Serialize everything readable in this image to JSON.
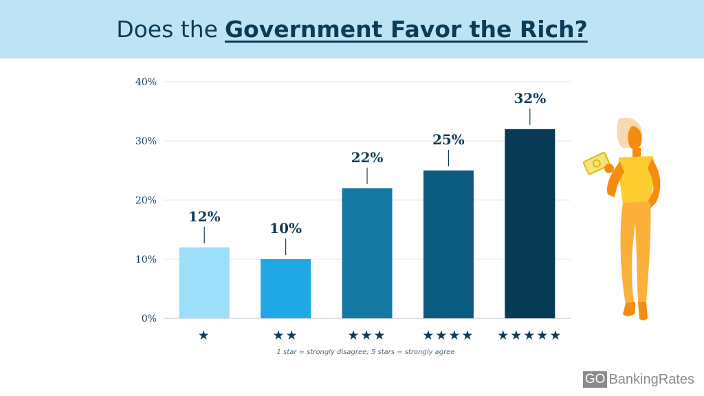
{
  "header": {
    "title_plain": "Does the",
    "title_emphasis": "Government Favor the Rich?"
  },
  "chart_data": {
    "type": "bar",
    "categories": [
      "★",
      "★★",
      "★★★",
      "★★★★",
      "★★★★★"
    ],
    "values": [
      12,
      10,
      22,
      25,
      32
    ],
    "value_labels": [
      "12%",
      "10%",
      "22%",
      "25%",
      "32%"
    ],
    "ylim": [
      0,
      40
    ],
    "yticks": [
      0,
      10,
      20,
      30,
      40
    ],
    "ytick_labels": [
      "0%",
      "10%",
      "20%",
      "30%",
      "40%"
    ],
    "grid": true,
    "bar_colors": [
      "#9bdffb",
      "#1fa8e3",
      "#1479a3",
      "#0b5a80",
      "#063a55"
    ],
    "star_color": "#0d3b55"
  },
  "caption": "1 star = strongly disagree; 5 stars = strongly agree",
  "brand": {
    "go": "GO",
    "name": "BankingRates"
  },
  "illustration": {
    "icon": "woman-holding-money-icon"
  }
}
